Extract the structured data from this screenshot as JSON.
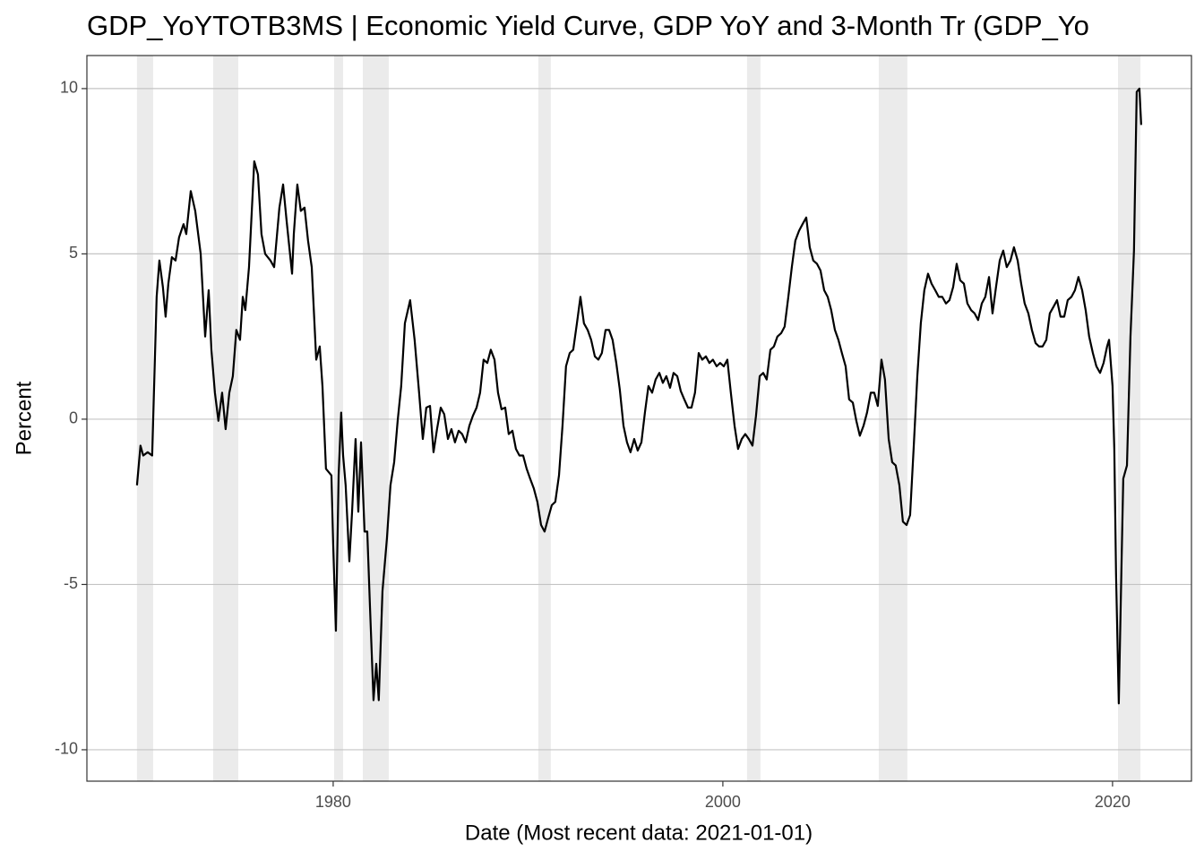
{
  "chart_data": {
    "type": "line",
    "title": "GDP_YoYTOTB3MS | Economic Yield Curve, GDP YoY and 3-Month Tr (GDP_Yo",
    "x_label": "Date (Most recent data: 2021-01-01)",
    "y_label": "Percent",
    "color": "#000000",
    "grid": "y",
    "shade_color": "#ebebeb",
    "shaded_ranges": [
      [
        1969.93,
        1970.76
      ],
      [
        1973.84,
        1975.13
      ],
      [
        1980.05,
        1980.51
      ],
      [
        1981.52,
        1982.85
      ],
      [
        1990.53,
        1991.17
      ],
      [
        2001.24,
        2001.93
      ],
      [
        2008.0,
        2009.47
      ],
      [
        2020.28,
        2021.43
      ]
    ],
    "xlim": [
      1967.36,
      2024.05
    ],
    "xticks": [
      1980,
      2000,
      2020
    ],
    "ylim": [
      -10.95,
      11.0
    ],
    "yticks": [
      -10,
      -5,
      0,
      5,
      10
    ],
    "x": [
      1969.93,
      1970.11,
      1970.25,
      1970.48,
      1970.71,
      1970.94,
      1971.08,
      1971.26,
      1971.4,
      1971.54,
      1971.72,
      1971.91,
      1972.09,
      1972.32,
      1972.46,
      1972.69,
      1972.92,
      1973.2,
      1973.43,
      1973.61,
      1973.75,
      1973.93,
      1974.11,
      1974.3,
      1974.48,
      1974.67,
      1974.85,
      1975.03,
      1975.22,
      1975.36,
      1975.49,
      1975.68,
      1975.95,
      1976.14,
      1976.32,
      1976.51,
      1976.78,
      1976.97,
      1977.24,
      1977.43,
      1977.61,
      1977.89,
      1977.98,
      1978.16,
      1978.34,
      1978.53,
      1978.71,
      1978.9,
      1979.13,
      1979.31,
      1979.45,
      1979.63,
      1979.91,
      1980.0,
      1980.14,
      1980.28,
      1980.41,
      1980.51,
      1980.64,
      1980.83,
      1980.97,
      1981.15,
      1981.29,
      1981.43,
      1981.61,
      1981.75,
      1981.89,
      1982.07,
      1982.21,
      1982.34,
      1982.53,
      1982.76,
      1982.94,
      1983.13,
      1983.31,
      1983.49,
      1983.68,
      1983.95,
      1984.18,
      1984.41,
      1984.6,
      1984.78,
      1984.97,
      1985.15,
      1985.33,
      1985.52,
      1985.7,
      1985.89,
      1986.07,
      1986.25,
      1986.44,
      1986.62,
      1986.8,
      1986.99,
      1987.17,
      1987.36,
      1987.54,
      1987.72,
      1987.91,
      1988.09,
      1988.28,
      1988.46,
      1988.64,
      1988.83,
      1989.01,
      1989.2,
      1989.38,
      1989.56,
      1989.75,
      1989.93,
      1990.11,
      1990.3,
      1990.48,
      1990.67,
      1990.85,
      1991.03,
      1991.22,
      1991.4,
      1991.59,
      1991.77,
      1991.95,
      1992.14,
      1992.32,
      1992.51,
      1992.69,
      1992.87,
      1993.06,
      1993.24,
      1993.43,
      1993.61,
      1993.79,
      1993.98,
      1994.16,
      1994.34,
      1994.53,
      1994.71,
      1994.9,
      1995.08,
      1995.26,
      1995.45,
      1995.63,
      1995.82,
      1996.0,
      1996.18,
      1996.37,
      1996.55,
      1996.74,
      1996.92,
      1997.1,
      1997.29,
      1997.47,
      1997.66,
      1997.84,
      1998.02,
      1998.21,
      1998.39,
      1998.57,
      1998.76,
      1998.94,
      1999.13,
      1999.31,
      1999.49,
      1999.68,
      1999.86,
      2000.05,
      2000.23,
      2000.41,
      2000.6,
      2000.78,
      2000.97,
      2001.15,
      2001.33,
      2001.52,
      2001.7,
      2001.89,
      2002.07,
      2002.25,
      2002.44,
      2002.62,
      2002.8,
      2002.99,
      2003.17,
      2003.36,
      2003.54,
      2003.72,
      2003.91,
      2004.09,
      2004.28,
      2004.46,
      2004.64,
      2004.83,
      2005.01,
      2005.2,
      2005.38,
      2005.56,
      2005.75,
      2005.93,
      2006.11,
      2006.3,
      2006.48,
      2006.67,
      2006.85,
      2007.03,
      2007.22,
      2007.4,
      2007.59,
      2007.77,
      2007.95,
      2008.14,
      2008.32,
      2008.51,
      2008.69,
      2008.87,
      2009.06,
      2009.24,
      2009.43,
      2009.61,
      2009.79,
      2009.98,
      2010.16,
      2010.34,
      2010.53,
      2010.71,
      2010.9,
      2011.08,
      2011.26,
      2011.45,
      2011.63,
      2011.82,
      2012.0,
      2012.18,
      2012.37,
      2012.55,
      2012.74,
      2012.92,
      2013.1,
      2013.29,
      2013.47,
      2013.66,
      2013.84,
      2014.02,
      2014.21,
      2014.39,
      2014.57,
      2014.76,
      2014.94,
      2015.13,
      2015.31,
      2015.49,
      2015.68,
      2015.86,
      2016.05,
      2016.23,
      2016.41,
      2016.6,
      2016.78,
      2016.97,
      2017.15,
      2017.33,
      2017.52,
      2017.7,
      2017.89,
      2018.07,
      2018.25,
      2018.44,
      2018.62,
      2018.8,
      2018.99,
      2019.17,
      2019.36,
      2019.54,
      2019.72,
      2019.82,
      2020.0,
      2020.09,
      2020.18,
      2020.32,
      2020.46,
      2020.55,
      2020.74,
      2020.92,
      2021.1,
      2021.24,
      2021.38,
      2021.47
    ],
    "values": [
      -2.0,
      -0.8,
      -1.1,
      -1.0,
      -1.1,
      3.7,
      4.8,
      4.0,
      3.1,
      4.1,
      4.9,
      4.8,
      5.5,
      5.9,
      5.6,
      6.9,
      6.3,
      5.0,
      2.5,
      3.9,
      2.1,
      0.8,
      -0.05,
      0.8,
      -0.3,
      0.8,
      1.3,
      2.7,
      2.4,
      3.7,
      3.3,
      4.6,
      7.8,
      7.4,
      5.6,
      5.0,
      4.8,
      4.6,
      6.4,
      7.1,
      6.0,
      4.4,
      5.6,
      7.1,
      6.3,
      6.4,
      5.4,
      4.6,
      1.8,
      2.2,
      1.0,
      -1.5,
      -1.7,
      -3.8,
      -6.4,
      -1.7,
      0.2,
      -1.1,
      -2.0,
      -4.3,
      -2.8,
      -0.6,
      -2.8,
      -0.7,
      -3.4,
      -3.4,
      -5.7,
      -8.5,
      -7.4,
      -8.5,
      -5.2,
      -3.6,
      -2.0,
      -1.3,
      -0.05,
      1.0,
      2.9,
      3.6,
      2.4,
      0.8,
      -0.6,
      0.35,
      0.4,
      -1.0,
      -0.3,
      0.35,
      0.15,
      -0.6,
      -0.3,
      -0.7,
      -0.35,
      -0.45,
      -0.7,
      -0.2,
      0.1,
      0.35,
      0.8,
      1.8,
      1.7,
      2.1,
      1.8,
      0.8,
      0.3,
      0.35,
      -0.45,
      -0.35,
      -0.9,
      -1.1,
      -1.1,
      -1.5,
      -1.8,
      -2.1,
      -2.5,
      -3.2,
      -3.4,
      -3.0,
      -2.6,
      -2.5,
      -1.7,
      -0.2,
      1.6,
      2.0,
      2.1,
      2.9,
      3.7,
      2.9,
      2.7,
      2.4,
      1.9,
      1.8,
      2.0,
      2.7,
      2.7,
      2.4,
      1.7,
      0.9,
      -0.2,
      -0.7,
      -1.0,
      -0.6,
      -0.95,
      -0.7,
      0.2,
      1.0,
      0.8,
      1.2,
      1.4,
      1.1,
      1.3,
      0.95,
      1.4,
      1.3,
      0.85,
      0.6,
      0.35,
      0.35,
      0.8,
      2.0,
      1.8,
      1.9,
      1.7,
      1.8,
      1.6,
      1.7,
      1.6,
      1.8,
      0.8,
      -0.2,
      -0.9,
      -0.6,
      -0.45,
      -0.6,
      -0.8,
      0.1,
      1.3,
      1.4,
      1.2,
      2.1,
      2.2,
      2.5,
      2.6,
      2.8,
      3.7,
      4.6,
      5.4,
      5.7,
      5.9,
      6.1,
      5.2,
      4.8,
      4.7,
      4.5,
      3.9,
      3.7,
      3.3,
      2.7,
      2.4,
      2.0,
      1.6,
      0.6,
      0.5,
      -0.05,
      -0.5,
      -0.2,
      0.2,
      0.8,
      0.8,
      0.4,
      1.8,
      1.2,
      -0.6,
      -1.3,
      -1.4,
      -2.0,
      -3.1,
      -3.2,
      -2.9,
      -0.9,
      1.3,
      2.9,
      3.9,
      4.4,
      4.1,
      3.9,
      3.7,
      3.7,
      3.5,
      3.6,
      4.0,
      4.7,
      4.2,
      4.1,
      3.5,
      3.3,
      3.2,
      3.0,
      3.5,
      3.7,
      4.3,
      3.2,
      4.0,
      4.8,
      5.1,
      4.6,
      4.8,
      5.2,
      4.8,
      4.1,
      3.5,
      3.2,
      2.7,
      2.3,
      2.2,
      2.2,
      2.4,
      3.2,
      3.4,
      3.6,
      3.1,
      3.1,
      3.6,
      3.7,
      3.9,
      4.3,
      3.9,
      3.3,
      2.5,
      2.0,
      1.6,
      1.4,
      1.7,
      2.2,
      2.4,
      1.0,
      -0.9,
      -4.7,
      -8.6,
      -4.4,
      -1.8,
      -1.4,
      2.5,
      5.1,
      9.9,
      10.0,
      8.9
    ]
  }
}
